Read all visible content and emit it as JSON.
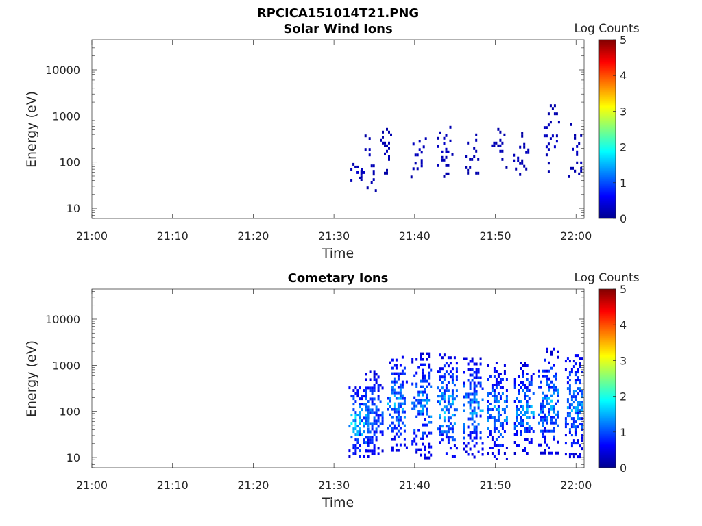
{
  "figure_title": "RPCICA151014T21.PNG",
  "chart_data": [
    {
      "type": "heatmap",
      "title": "Solar Wind Ions",
      "xlabel": "Time",
      "ylabel": "Energy (eV)",
      "x_range": [
        "21:00",
        "22:01"
      ],
      "x_ticks": [
        "21:00",
        "21:10",
        "21:20",
        "21:30",
        "21:40",
        "21:50",
        "22:00"
      ],
      "y_scale": "log",
      "y_range": [
        6,
        45000
      ],
      "y_ticks": [
        "10",
        "100",
        "1000",
        "10000"
      ],
      "y_tick_values": [
        10,
        100,
        1000,
        10000
      ],
      "colorbar": {
        "label": "Log Counts",
        "range": [
          0,
          5
        ],
        "ticks": [
          "0",
          "1",
          "2",
          "3",
          "4",
          "5"
        ],
        "colormap": "jet"
      },
      "empty_until": "21:32",
      "bursts": [
        {
          "t": "21:32.8",
          "e_lo": 35,
          "e_hi": 110,
          "level": 0.25
        },
        {
          "t": "21:34.3",
          "e_lo": 25,
          "e_hi": 400,
          "level": 0.2
        },
        {
          "t": "21:36.7",
          "e_lo": 60,
          "e_hi": 550,
          "level": 0.2
        },
        {
          "t": "21:40.5",
          "e_lo": 50,
          "e_hi": 600,
          "level": 0.25
        },
        {
          "t": "21:43.8",
          "e_lo": 50,
          "e_hi": 700,
          "level": 0.25
        },
        {
          "t": "21:47.0",
          "e_lo": 50,
          "e_hi": 550,
          "level": 0.2
        },
        {
          "t": "21:50.5",
          "e_lo": 80,
          "e_hi": 550,
          "level": 0.2
        },
        {
          "t": "21:53.2",
          "e_lo": 50,
          "e_hi": 450,
          "level": 0.2
        },
        {
          "t": "21:57.0",
          "e_lo": 60,
          "e_hi": 1800,
          "level": 0.25
        },
        {
          "t": "22:00.0",
          "e_lo": 45,
          "e_hi": 700,
          "level": 0.25
        }
      ]
    },
    {
      "type": "heatmap",
      "title": "Cometary Ions",
      "xlabel": "Time",
      "ylabel": "Energy (eV)",
      "x_range": [
        "21:00",
        "22:01"
      ],
      "x_ticks": [
        "21:00",
        "21:10",
        "21:20",
        "21:30",
        "21:40",
        "21:50",
        "22:00"
      ],
      "y_scale": "log",
      "y_range": [
        6,
        45000
      ],
      "y_ticks": [
        "10",
        "100",
        "1000",
        "10000"
      ],
      "y_tick_values": [
        10,
        100,
        1000,
        10000
      ],
      "colorbar": {
        "label": "Log Counts",
        "range": [
          0,
          5
        ],
        "ticks": [
          "0",
          "1",
          "2",
          "3",
          "4",
          "5"
        ],
        "colormap": "jet"
      },
      "empty_until": "21:32",
      "bursts": [
        {
          "t": "21:33.0",
          "e_lo": 10,
          "e_hi": 350,
          "level": 1.9
        },
        {
          "t": "21:34.8",
          "e_lo": 10,
          "e_hi": 900,
          "level": 1.3
        },
        {
          "t": "21:37.8",
          "e_lo": 15,
          "e_hi": 1600,
          "level": 1.6
        },
        {
          "t": "21:40.8",
          "e_lo": 10,
          "e_hi": 1900,
          "level": 1.5
        },
        {
          "t": "21:44.0",
          "e_lo": 10,
          "e_hi": 1800,
          "level": 1.7
        },
        {
          "t": "21:47.2",
          "e_lo": 10,
          "e_hi": 1500,
          "level": 1.5
        },
        {
          "t": "21:50.2",
          "e_lo": 10,
          "e_hi": 1200,
          "level": 1.5
        },
        {
          "t": "21:53.5",
          "e_lo": 12,
          "e_hi": 1200,
          "level": 1.5
        },
        {
          "t": "21:56.5",
          "e_lo": 12,
          "e_hi": 2400,
          "level": 1.5
        },
        {
          "t": "21:59.8",
          "e_lo": 10,
          "e_hi": 2000,
          "level": 1.5
        }
      ]
    }
  ]
}
